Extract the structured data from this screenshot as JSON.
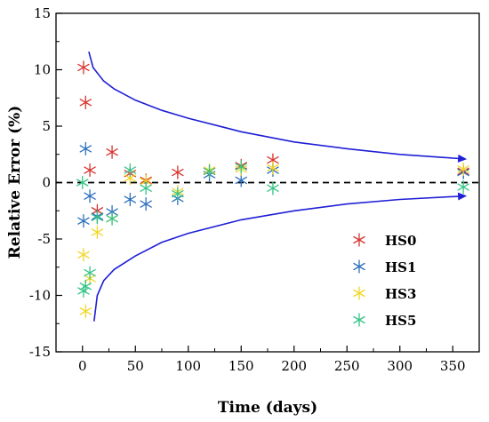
{
  "chart_data": {
    "type": "scatter",
    "xlabel": "Time (days)",
    "ylabel": "Relative Error (%)",
    "xlim": [
      -25,
      375
    ],
    "ylim": [
      -15,
      15
    ],
    "x_ticks": [
      0,
      50,
      100,
      150,
      200,
      250,
      300,
      350
    ],
    "y_ticks": [
      -15,
      -10,
      -5,
      0,
      5,
      10,
      15
    ],
    "grid": false,
    "legend_position": "bottom-right",
    "zero_line": {
      "y": 0,
      "style": "dashed",
      "color": "#000000"
    },
    "envelope": {
      "color": "#1f1fd6",
      "upper": [
        [
          6,
          11.6
        ],
        [
          10,
          10.2
        ],
        [
          20,
          9.0
        ],
        [
          30,
          8.3
        ],
        [
          50,
          7.3
        ],
        [
          75,
          6.4
        ],
        [
          100,
          5.7
        ],
        [
          150,
          4.5
        ],
        [
          200,
          3.6
        ],
        [
          250,
          3.0
        ],
        [
          300,
          2.5
        ],
        [
          360,
          2.1
        ]
      ],
      "lower": [
        [
          11,
          -12.3
        ],
        [
          14,
          -10.0
        ],
        [
          20,
          -8.7
        ],
        [
          30,
          -7.7
        ],
        [
          50,
          -6.5
        ],
        [
          75,
          -5.3
        ],
        [
          100,
          -4.5
        ],
        [
          150,
          -3.3
        ],
        [
          200,
          -2.5
        ],
        [
          250,
          -1.9
        ],
        [
          300,
          -1.5
        ],
        [
          360,
          -1.2
        ]
      ]
    },
    "series": [
      {
        "name": "HS0",
        "color": "#d9322e",
        "points": [
          [
            1,
            10.2
          ],
          [
            3,
            7.1
          ],
          [
            7,
            1.1
          ],
          [
            14,
            -2.5
          ],
          [
            28,
            2.7
          ],
          [
            45,
            0.8
          ],
          [
            60,
            0.2
          ],
          [
            90,
            0.9
          ],
          [
            120,
            1.0
          ],
          [
            150,
            1.5
          ],
          [
            180,
            2.0
          ],
          [
            360,
            1.0
          ]
        ]
      },
      {
        "name": "HS1",
        "color": "#2b6fbd",
        "points": [
          [
            1,
            -3.4
          ],
          [
            3,
            3.0
          ],
          [
            7,
            -1.2
          ],
          [
            14,
            -3.0
          ],
          [
            28,
            -2.6
          ],
          [
            45,
            -1.5
          ],
          [
            60,
            -1.9
          ],
          [
            90,
            -1.4
          ],
          [
            120,
            0.7
          ],
          [
            150,
            0.2
          ],
          [
            180,
            1.1
          ],
          [
            360,
            0.9
          ]
        ]
      },
      {
        "name": "HS3",
        "color": "#f2d626",
        "points": [
          [
            1,
            -6.4
          ],
          [
            3,
            -11.4
          ],
          [
            7,
            -8.5
          ],
          [
            14,
            -4.4
          ],
          [
            28,
            -3.2
          ],
          [
            45,
            0.4
          ],
          [
            60,
            0.1
          ],
          [
            90,
            -0.8
          ],
          [
            120,
            1.1
          ],
          [
            150,
            1.2
          ],
          [
            180,
            1.3
          ],
          [
            360,
            1.2
          ]
        ]
      },
      {
        "name": "HS5",
        "color": "#36c486",
        "points": [
          [
            0,
            0.0
          ],
          [
            1,
            -9.6
          ],
          [
            3,
            -9.2
          ],
          [
            7,
            -8.0
          ],
          [
            14,
            -3.1
          ],
          [
            28,
            -3.2
          ],
          [
            45,
            1.1
          ],
          [
            60,
            -0.5
          ],
          [
            90,
            -1.0
          ],
          [
            120,
            1.0
          ],
          [
            150,
            1.4
          ],
          [
            180,
            -0.5
          ],
          [
            360,
            -0.4
          ]
        ]
      }
    ]
  }
}
